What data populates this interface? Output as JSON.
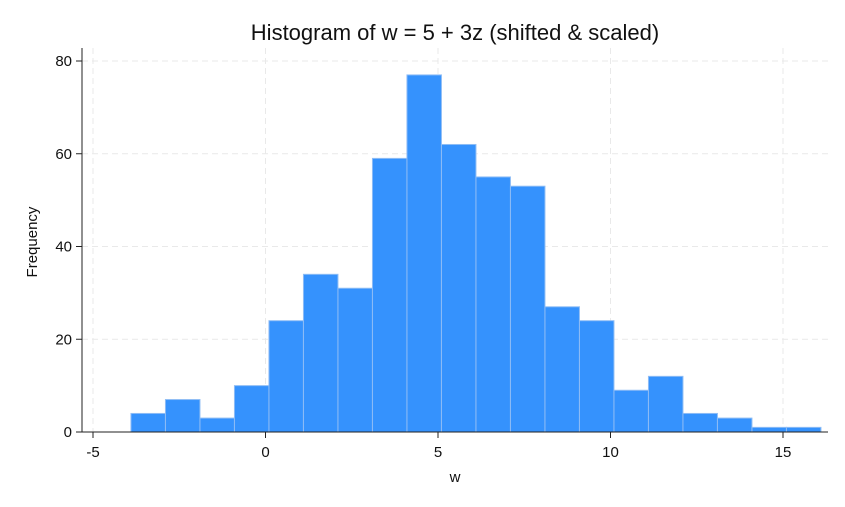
{
  "chart_data": {
    "type": "bar",
    "title": "Histogram of w = 5 + 3z (shifted & scaled)",
    "xlabel": "w",
    "ylabel": "Frequency",
    "xlim": [
      -5,
      16.3
    ],
    "ylim": [
      0,
      82
    ],
    "xticks": [
      -5,
      0,
      5,
      10,
      15
    ],
    "yticks": [
      0,
      20,
      40,
      60,
      80
    ],
    "grid": true,
    "bar_color": "#3592fd",
    "bins": [
      {
        "x0": -3.9,
        "x1": -2.9,
        "count": 4
      },
      {
        "x0": -2.9,
        "x1": -1.9,
        "count": 7
      },
      {
        "x0": -1.9,
        "x1": -0.9,
        "count": 3
      },
      {
        "x0": -0.9,
        "x1": 0.1,
        "count": 10
      },
      {
        "x0": 0.1,
        "x1": 1.1,
        "count": 24
      },
      {
        "x0": 1.1,
        "x1": 2.1,
        "count": 34
      },
      {
        "x0": 2.1,
        "x1": 3.1,
        "count": 31
      },
      {
        "x0": 3.1,
        "x1": 4.1,
        "count": 59
      },
      {
        "x0": 4.1,
        "x1": 5.1,
        "count": 77
      },
      {
        "x0": 5.1,
        "x1": 6.1,
        "count": 62
      },
      {
        "x0": 6.1,
        "x1": 7.1,
        "count": 55
      },
      {
        "x0": 7.1,
        "x1": 8.1,
        "count": 53
      },
      {
        "x0": 8.1,
        "x1": 9.1,
        "count": 27
      },
      {
        "x0": 9.1,
        "x1": 10.1,
        "count": 24
      },
      {
        "x0": 10.1,
        "x1": 11.1,
        "count": 9
      },
      {
        "x0": 11.1,
        "x1": 12.1,
        "count": 12
      },
      {
        "x0": 12.1,
        "x1": 13.1,
        "count": 4
      },
      {
        "x0": 13.1,
        "x1": 14.1,
        "count": 3
      },
      {
        "x0": 14.1,
        "x1": 15.1,
        "count": 1
      },
      {
        "x0": 15.1,
        "x1": 16.1,
        "count": 1
      }
    ]
  }
}
